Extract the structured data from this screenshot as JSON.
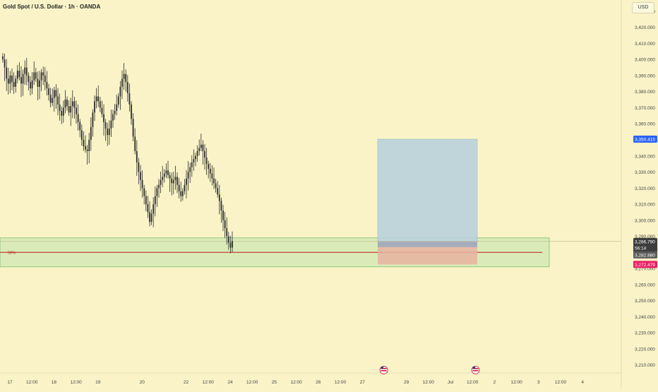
{
  "title": "Gold Spot / U.S. Dollar · 1h · OANDA",
  "currency_button": "USD",
  "colors": {
    "background": "#f9f3c7",
    "candle": "#2b2b2b",
    "zone_fill": "#cfe8b4",
    "zone_border": "#7cbf6a",
    "midline": "#b71c1c",
    "target_fill": "#b9d2dc",
    "stop_fill": "#e7b3a0",
    "target_label": "#2962ff",
    "stop_label": "#e91e63",
    "price_label": "#3d3d3d"
  },
  "chart_data": {
    "type": "candlestick",
    "symbol": "Gold Spot / U.S. Dollar",
    "interval": "1h",
    "broker": "OANDA",
    "ylim": [
      3205,
      3437
    ],
    "y_ticks": [
      3210,
      3220,
      3230,
      3240,
      3250,
      3260,
      3270,
      3280,
      3290,
      3300,
      3310,
      3320,
      3330,
      3340,
      3350,
      3360,
      3370,
      3380,
      3390,
      3400,
      3410,
      3420,
      3430
    ],
    "y_tick_labels": [
      "3,210.000",
      "3,220.000",
      "3,230.000",
      "3,240.000",
      "3,250.000",
      "3,260.000",
      "3,270.000",
      "3,280.000",
      "3,290.000",
      "3,300.000",
      "3,310.000",
      "3,320.000",
      "3,330.000",
      "3,340.000",
      "3,350.000",
      "3,360.000",
      "3,370.000",
      "3,380.000",
      "3,390.000",
      "3,400.000",
      "3,410.000",
      "3,420.000",
      "3,430.000"
    ],
    "x_labels": [
      "17",
      "12:00",
      "18",
      "12:00",
      "19",
      "20",
      "22",
      "12:00",
      "24",
      "12:00",
      "25",
      "12:00",
      "26",
      "12:00",
      "27",
      "29",
      "12:00",
      "Jul",
      "12:00",
      "2",
      "12:00",
      "3",
      "12:00",
      "4"
    ],
    "x_label_bars": [
      0,
      12,
      24,
      36,
      48,
      72,
      96,
      108,
      120,
      132,
      144,
      156,
      168,
      180,
      192,
      216,
      228,
      240,
      252,
      264,
      276,
      288,
      300,
      312
    ],
    "event_marker_bars": [
      196,
      246
    ],
    "closes": [
      3400,
      3395,
      3388,
      3385,
      3390,
      3386,
      3383,
      3388,
      3393,
      3389,
      3385,
      3391,
      3395,
      3390,
      3386,
      3382,
      3387,
      3392,
      3388,
      3383,
      3387,
      3392,
      3390,
      3386,
      3382,
      3378,
      3373,
      3376,
      3381,
      3377,
      3372,
      3368,
      3365,
      3370,
      3375,
      3371,
      3367,
      3371,
      3374,
      3370,
      3366,
      3361,
      3356,
      3350,
      3346,
      3344,
      3343,
      3350,
      3358,
      3367,
      3374,
      3377,
      3374,
      3370,
      3366,
      3361,
      3357,
      3353,
      3357,
      3362,
      3366,
      3368,
      3372,
      3377,
      3383,
      3388,
      3391,
      3386,
      3379,
      3372,
      3363,
      3352,
      3343,
      3336,
      3330,
      3325,
      3320,
      3315,
      3310,
      3305,
      3299,
      3304,
      3310,
      3315,
      3320,
      3322,
      3325,
      3327,
      3329,
      3331,
      3328,
      3326,
      3323,
      3325,
      3327,
      3322,
      3318,
      3315,
      3318,
      3322,
      3326,
      3330,
      3333,
      3336,
      3338,
      3340,
      3343,
      3345,
      3347,
      3343,
      3339,
      3335,
      3332,
      3329,
      3326,
      3323,
      3320,
      3316,
      3312,
      3306,
      3300,
      3295,
      3290,
      3286,
      3283,
      3287
    ],
    "position": {
      "type": "long",
      "entry": 3286.79,
      "target": 3350.415,
      "stop": 3272.479,
      "start_bar": 196,
      "end_bar": 248
    },
    "zone": {
      "top": 3289,
      "bottom": 3271,
      "mid": 3280,
      "mid_label": "50%",
      "start_bar": 0,
      "end_bar": 286
    },
    "labels": {
      "target_price": "3,350.415",
      "current_price": "3,286.790",
      "countdown": "56:14",
      "mid_price": "3,282.880",
      "stop_price": "3,272.479"
    }
  }
}
